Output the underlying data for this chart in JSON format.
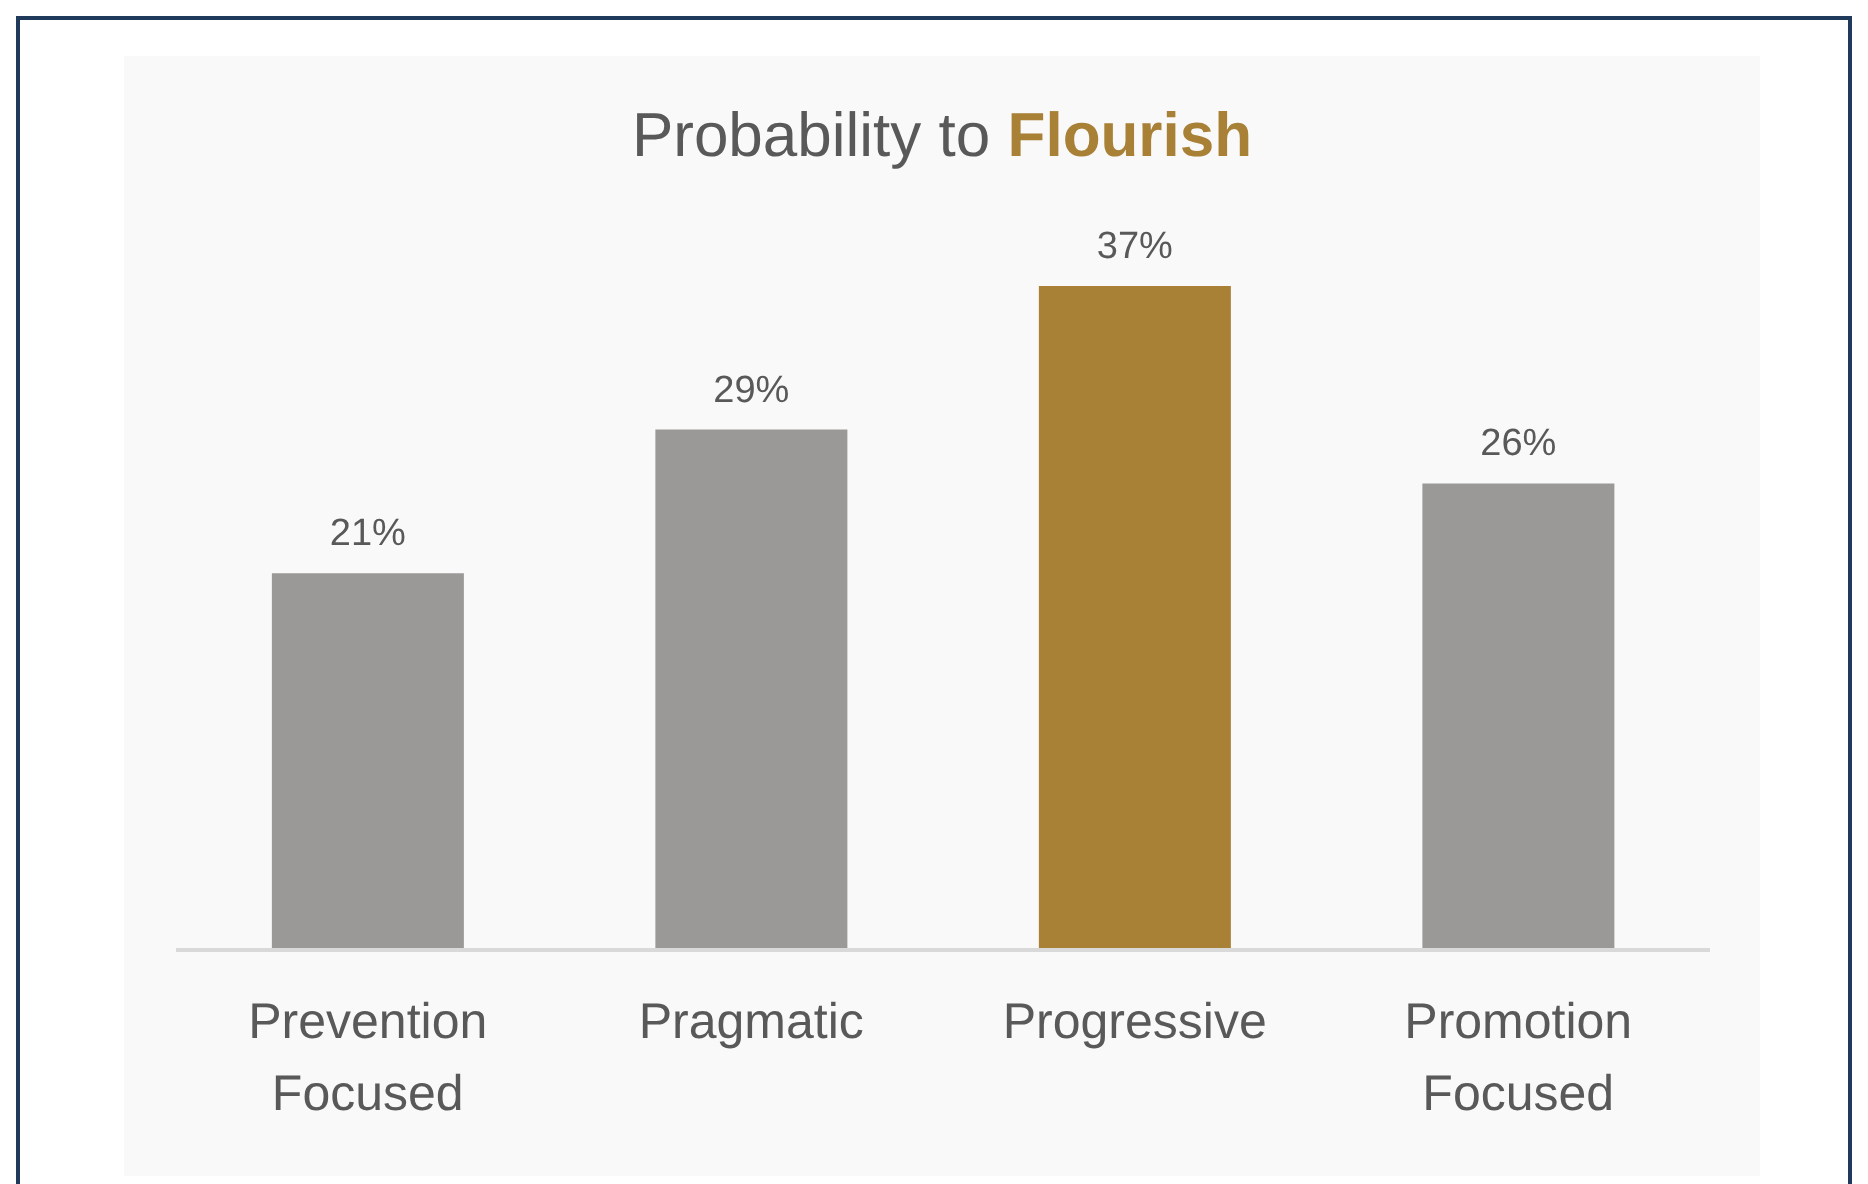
{
  "chart_data": {
    "type": "bar",
    "title": "Probability to Flourish",
    "categories": [
      "Prevention Focused",
      "Pragmatic",
      "Progressive",
      "Promotion Focused"
    ],
    "values": [
      21,
      29,
      37,
      26
    ],
    "colors": [
      "#9a9998",
      "#9a9998",
      "#a88036",
      "#9a9998"
    ],
    "value_labels": [
      "21%",
      "29%",
      "37%",
      "26%"
    ]
  }
}
